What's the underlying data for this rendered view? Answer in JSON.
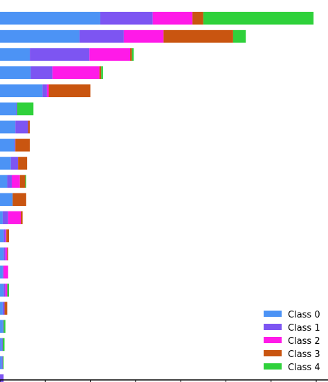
{
  "chart_data": {
    "type": "bar",
    "orientation": "horizontal",
    "stacked": true,
    "title": "",
    "xlabel": "",
    "ylabel": "",
    "xlim": [
      0,
      3.63
    ],
    "x_tick_values": [
      0,
      0.5,
      1.0,
      1.5,
      2.0,
      2.5,
      3.0,
      3.5
    ],
    "tick_labels_visible": false,
    "grid": false,
    "legend_position": "bottom-right",
    "series": [
      {
        "name": "Class 0",
        "color": "#4c93f5",
        "values": [
          1.11,
          0.88,
          0.33,
          0.34,
          0.47,
          0.18,
          0.17,
          0.16,
          0.12,
          0.08,
          0.14,
          0.03,
          0.04,
          0.04,
          0.03,
          0.04,
          0.03,
          0.03,
          0.02,
          0.02,
          0.0
        ]
      },
      {
        "name": "Class 1",
        "color": "#7d55f2",
        "values": [
          0.58,
          0.49,
          0.66,
          0.24,
          0.05,
          0.01,
          0.14,
          0.01,
          0.08,
          0.05,
          0.0,
          0.06,
          0.02,
          0.02,
          0.01,
          0.02,
          0.02,
          0.01,
          0.01,
          0.01,
          0.04
        ]
      },
      {
        "name": "Class 2",
        "color": "#ff1ae8",
        "values": [
          0.44,
          0.44,
          0.45,
          0.52,
          0.02,
          0.0,
          0.0,
          0.0,
          0.0,
          0.09,
          0.0,
          0.14,
          0.01,
          0.02,
          0.05,
          0.02,
          0.0,
          0.0,
          0.0,
          0.0,
          0.0
        ]
      },
      {
        "name": "Class 3",
        "color": "#c95510",
        "values": [
          0.12,
          0.77,
          0.02,
          0.02,
          0.46,
          0.0,
          0.02,
          0.16,
          0.1,
          0.06,
          0.15,
          0.02,
          0.03,
          0.01,
          0.0,
          0.0,
          0.03,
          0.0,
          0.0,
          0.0,
          0.0
        ]
      },
      {
        "name": "Class 4",
        "color": "#2fd13b",
        "values": [
          1.22,
          0.14,
          0.02,
          0.02,
          0.0,
          0.18,
          0.0,
          0.0,
          0.0,
          0.01,
          0.0,
          0.0,
          0.0,
          0.0,
          0.0,
          0.02,
          0.0,
          0.02,
          0.02,
          0.01,
          0.0
        ]
      }
    ]
  }
}
